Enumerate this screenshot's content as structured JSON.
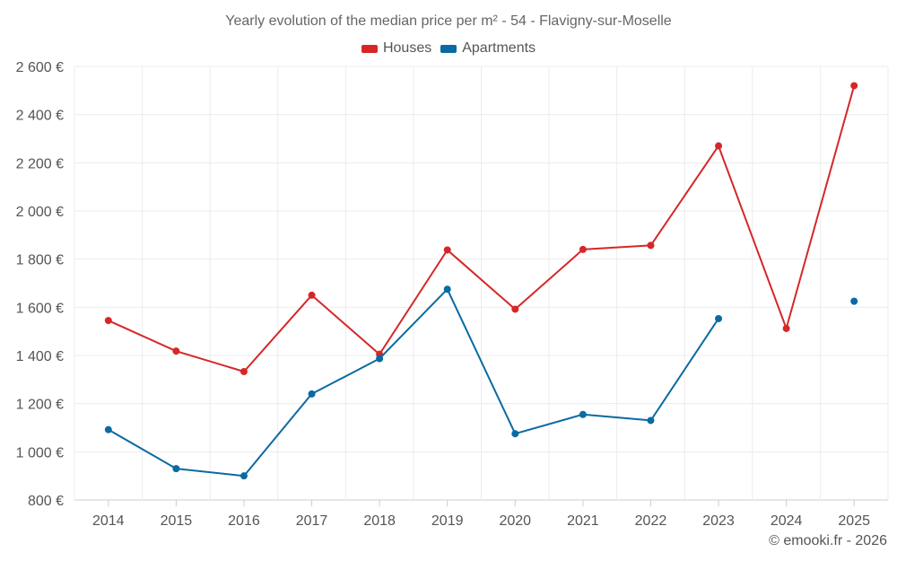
{
  "chart_data": {
    "type": "line",
    "title": "Yearly evolution of the median price per m² - 54 - Flavigny-sur-Moselle",
    "xlabel": "",
    "ylabel": "",
    "categories": [
      "2014",
      "2015",
      "2016",
      "2017",
      "2018",
      "2019",
      "2020",
      "2021",
      "2022",
      "2023",
      "2024",
      "2025"
    ],
    "ylim": [
      800,
      2600
    ],
    "yticks": [
      800,
      1000,
      1200,
      1400,
      1600,
      1800,
      2000,
      2200,
      2400,
      2600
    ],
    "ytick_labels": [
      "800 €",
      "1 000 €",
      "1 200 €",
      "1 400 €",
      "1 600 €",
      "1 800 €",
      "2 000 €",
      "2 200 €",
      "2 400 €",
      "2 600 €"
    ],
    "grid": true,
    "legend_position": "top-center",
    "series": [
      {
        "name": "Houses",
        "color": "#d62728",
        "values": [
          1545,
          1418,
          1333,
          1650,
          1405,
          1838,
          1592,
          1840,
          1857,
          2270,
          1512,
          2520
        ]
      },
      {
        "name": "Apartments",
        "color": "#1f77b4",
        "display_color": "#0b6aa2",
        "values": [
          1092,
          930,
          900,
          1240,
          1387,
          1675,
          1075,
          1155,
          1130,
          1553,
          null,
          1625
        ]
      }
    ]
  },
  "credit": "© emooki.fr - 2026"
}
